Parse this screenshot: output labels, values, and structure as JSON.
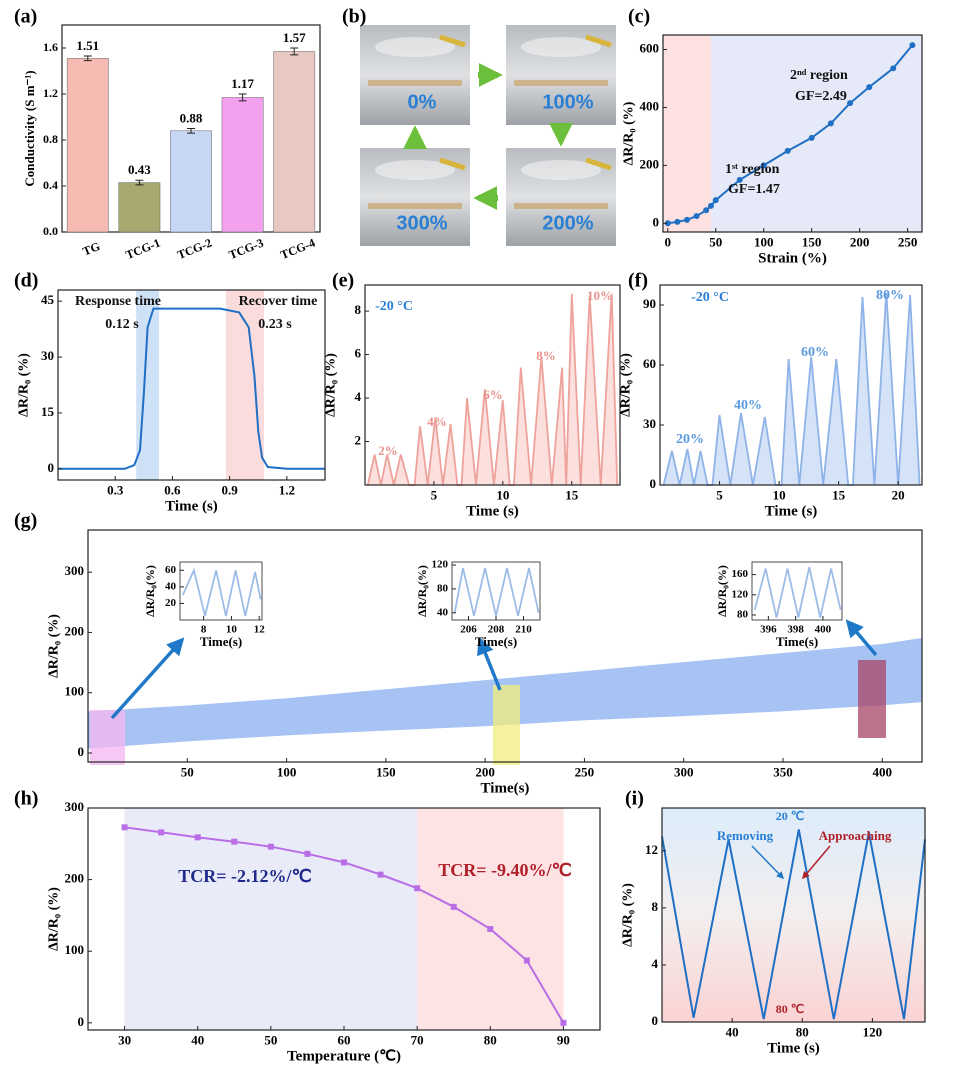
{
  "chart_data": [
    {
      "type": "bar",
      "label": "(a)",
      "ylabel": "Conductivity (S m⁻¹)",
      "categories": [
        "TG",
        "TCG-1",
        "TCG-2",
        "TCG-3",
        "TCG-4"
      ],
      "values": [
        1.51,
        0.43,
        0.88,
        1.17,
        1.57
      ],
      "errors": [
        0.02,
        0.02,
        0.02,
        0.03,
        0.03
      ],
      "colors": [
        "#f6bcb4",
        "#a9a870",
        "#c8d6f6",
        "#f3a0ee",
        "#e9c8c4"
      ],
      "ylim": [
        0,
        1.8
      ],
      "yticks": [
        {
          "value": 0,
          "label": "0.0"
        },
        0.4,
        0.8,
        1.2,
        1.6
      ]
    },
    {
      "type": "photo-grid",
      "label": "(b)",
      "captions": [
        "0%",
        "100%",
        "200%",
        "300%"
      ]
    },
    {
      "type": "line",
      "label": "(c)",
      "xlabel": "Strain (%)",
      "ylabel": "ΔR/R₀ (%)",
      "xlim": [
        -5,
        265
      ],
      "xticks": [
        0,
        50,
        100,
        150,
        200,
        250
      ],
      "ylim": [
        -30,
        650
      ],
      "yticks": [
        0,
        200,
        400,
        600
      ],
      "color": "#1f6fc4",
      "markers": true,
      "regions": [
        {
          "from": -5,
          "to": 45,
          "color": "#fde0e0"
        },
        {
          "from": 45,
          "to": 265,
          "color": "#e6e9f8"
        }
      ],
      "x": [
        0,
        10,
        20,
        30,
        40,
        45,
        50,
        75,
        100,
        125,
        150,
        170,
        190,
        210,
        235,
        255
      ],
      "values": [
        0,
        5,
        12,
        25,
        45,
        60,
        80,
        150,
        200,
        250,
        295,
        345,
        415,
        470,
        535,
        615
      ],
      "annotations": [
        "1ˢᵗ region",
        "GF=1.47",
        "2ⁿᵈ region",
        "GF=2.49"
      ]
    },
    {
      "type": "line",
      "label": "(d)",
      "xlabel": "Time (s)",
      "ylabel": "ΔR/R₀ (%)",
      "xlim": [
        0,
        1.4
      ],
      "xticks": [
        0.3,
        0.6,
        0.9,
        1.2
      ],
      "ylim": [
        -3,
        48
      ],
      "yticks": [
        0,
        15,
        30,
        45
      ],
      "color": "#1f6fc4",
      "regions": [
        {
          "from": 0.41,
          "to": 0.53,
          "color": "#cfe1f7"
        },
        {
          "from": 0.88,
          "to": 1.08,
          "color": "#fadcdc"
        }
      ],
      "x": [
        0,
        0.35,
        0.4,
        0.43,
        0.45,
        0.47,
        0.5,
        0.55,
        0.7,
        0.85,
        0.95,
        1.0,
        1.03,
        1.05,
        1.07,
        1.1,
        1.2,
        1.4
      ],
      "values": [
        0,
        0,
        1,
        5,
        20,
        38,
        43,
        43,
        43,
        43,
        42,
        38,
        25,
        10,
        3,
        0.5,
        0,
        0
      ],
      "annotations": [
        "Response time",
        "0.12 s",
        "Recover time",
        "0.23 s"
      ]
    },
    {
      "type": "area",
      "label": "(e)",
      "xlabel": "Time (s)",
      "ylabel": "ΔR/R₀ (%)",
      "xlim": [
        0,
        18.5
      ],
      "xticks": [
        5,
        10,
        15
      ],
      "ylim": [
        0,
        9.2
      ],
      "yticks": [
        2,
        4,
        6,
        8
      ],
      "color": "#eea29c",
      "fill": "#fbd8d5",
      "x": [
        0.2,
        0.7,
        1.15,
        1.6,
        2.1,
        2.6,
        3.2,
        3.6,
        4.0,
        4.55,
        5.1,
        5.65,
        6.2,
        6.7,
        7.0,
        7.4,
        8.05,
        8.7,
        9.35,
        10.0,
        10.5,
        10.8,
        11.3,
        12.05,
        12.8,
        13.55,
        14.3,
        14.6,
        15.0,
        15.65,
        16.3,
        17.1,
        17.9,
        18.3
      ],
      "values": [
        0,
        1.4,
        0,
        1.4,
        0,
        1.4,
        0,
        0,
        2.7,
        0,
        3.1,
        0,
        2.8,
        0,
        0,
        4.0,
        0,
        4.4,
        0,
        3.9,
        0,
        0,
        5.4,
        0,
        5.9,
        0,
        5.4,
        0,
        8.8,
        0,
        8.7,
        0,
        8.8,
        0
      ],
      "annotations": [
        "-20 °C",
        "2%",
        "4%",
        "6%",
        "8%",
        "10%"
      ]
    },
    {
      "type": "area",
      "label": "(f)",
      "xlabel": "Time (s)",
      "ylabel": "ΔR/R₀ (%)",
      "xlim": [
        0,
        22
      ],
      "xticks": [
        5,
        10,
        15,
        20
      ],
      "ylim": [
        0,
        100
      ],
      "yticks": [
        0,
        30,
        60,
        90
      ],
      "color": "#8fb3e8",
      "fill": "#cadcf6",
      "x": [
        0.3,
        1.0,
        1.65,
        2.3,
        2.85,
        3.4,
        4.0,
        4.4,
        5.0,
        5.9,
        6.8,
        7.8,
        8.8,
        9.7,
        10.2,
        10.8,
        11.7,
        12.7,
        13.7,
        14.8,
        15.8,
        16.2,
        17.0,
        18.0,
        19.0,
        20.0,
        21.0,
        21.8
      ],
      "values": [
        0,
        17,
        0,
        18,
        0,
        17,
        0,
        0,
        35,
        0,
        36,
        0,
        34,
        0,
        0,
        63,
        0,
        64,
        0,
        63,
        0,
        0,
        94,
        0,
        96,
        0,
        95,
        0
      ],
      "annotations": [
        "-20 °C",
        "20%",
        "40%",
        "60%",
        "80%"
      ]
    },
    {
      "type": "band",
      "label": "(g)",
      "xlabel": "Time(s)",
      "ylabel": "ΔR/R₀ (%)",
      "xlim": [
        0,
        420
      ],
      "xticks": [
        50,
        100,
        150,
        200,
        250,
        300,
        350,
        400
      ],
      "ylim": [
        -15,
        370
      ],
      "yticks": [
        0,
        100,
        200,
        300
      ],
      "x": [
        0,
        50,
        100,
        150,
        200,
        250,
        300,
        350,
        400,
        420
      ],
      "series": [
        {
          "color": "#a7c3f4",
          "values": [
            68,
            78,
            90,
            105,
            120,
            135,
            150,
            165,
            180,
            190
          ]
        },
        {
          "color": "#a7c3f4",
          "values": [
            8,
            20,
            30,
            38,
            45,
            55,
            62,
            70,
            80,
            85
          ]
        }
      ],
      "insets": [
        {
          "xlabel": "Time(s)",
          "ylabel": "ΔR/R₀(%)",
          "xlim": [
            6.3,
            12.2
          ],
          "xticks": [
            8,
            10,
            12
          ],
          "ylim": [
            0,
            70
          ],
          "yticks": [
            20,
            40,
            60
          ],
          "x": [
            6.5,
            7.3,
            8.1,
            8.9,
            9.6,
            10.3,
            11.0,
            11.7,
            12.1
          ],
          "values": [
            30,
            60,
            5,
            60,
            5,
            60,
            5,
            58,
            25
          ]
        },
        {
          "xlabel": "Time(s)",
          "ylabel": "ΔR/R₀(%)",
          "xlim": [
            204.8,
            211.2
          ],
          "xticks": [
            206,
            208,
            210
          ],
          "ylim": [
            28,
            125
          ],
          "yticks": [
            40,
            80,
            120
          ],
          "x": [
            205,
            205.6,
            206.4,
            207.2,
            208.0,
            208.8,
            209.6,
            210.4,
            211.1
          ],
          "values": [
            40,
            115,
            35,
            115,
            35,
            115,
            35,
            115,
            40
          ]
        },
        {
          "xlabel": "Time(s)",
          "ylabel": "ΔR/R₀(%)",
          "xlim": [
            394.8,
            401.4
          ],
          "xticks": [
            396,
            398,
            400
          ],
          "ylim": [
            70,
            185
          ],
          "yticks": [
            80,
            120,
            160
          ],
          "x": [
            395,
            395.8,
            396.6,
            397.4,
            398.2,
            399,
            399.8,
            400.6,
            401.3
          ],
          "values": [
            90,
            172,
            75,
            172,
            75,
            175,
            75,
            172,
            90
          ]
        }
      ]
    },
    {
      "type": "line",
      "label": "(h)",
      "xlabel": "Temperature (℃)",
      "ylabel": "ΔR/R₀ (%)",
      "xlim": [
        25,
        95
      ],
      "xticks": [
        30,
        40,
        50,
        60,
        70,
        80,
        90
      ],
      "ylim": [
        -10,
        300
      ],
      "yticks": [
        0,
        100,
        200,
        300
      ],
      "color": "#b96ee6",
      "markers": true,
      "regions": [
        {
          "from": 30,
          "to": 70,
          "color": "#e9ecf8"
        },
        {
          "from": 70,
          "to": 90,
          "color": "#fde3e3"
        }
      ],
      "x": [
        30,
        35,
        40,
        45,
        50,
        55,
        60,
        65,
        70,
        75,
        80,
        85,
        90
      ],
      "values": [
        273,
        266,
        259,
        253,
        246,
        236,
        224,
        207,
        188,
        162,
        131,
        87,
        0
      ],
      "annotations": [
        "TCR= -2.12%/℃",
        "TCR= -9.40%/℃"
      ]
    },
    {
      "type": "line",
      "label": "(i)",
      "xlabel": "Time (s)",
      "ylabel": "ΔR/R₀ (%)",
      "xlim": [
        0,
        150
      ],
      "xticks": [
        40,
        80,
        120
      ],
      "ylim": [
        0,
        15
      ],
      "yticks": [
        0,
        4,
        8,
        12
      ],
      "color": "#1f6fc4",
      "x": [
        0,
        18,
        38,
        58,
        78,
        98,
        118,
        138,
        150
      ],
      "values": [
        13,
        0.3,
        12.8,
        0.2,
        13.5,
        0.2,
        13.3,
        0.2,
        12.8
      ],
      "annotations": [
        "20 ℃",
        "Removing",
        "Approaching",
        "80 ℃"
      ]
    }
  ]
}
